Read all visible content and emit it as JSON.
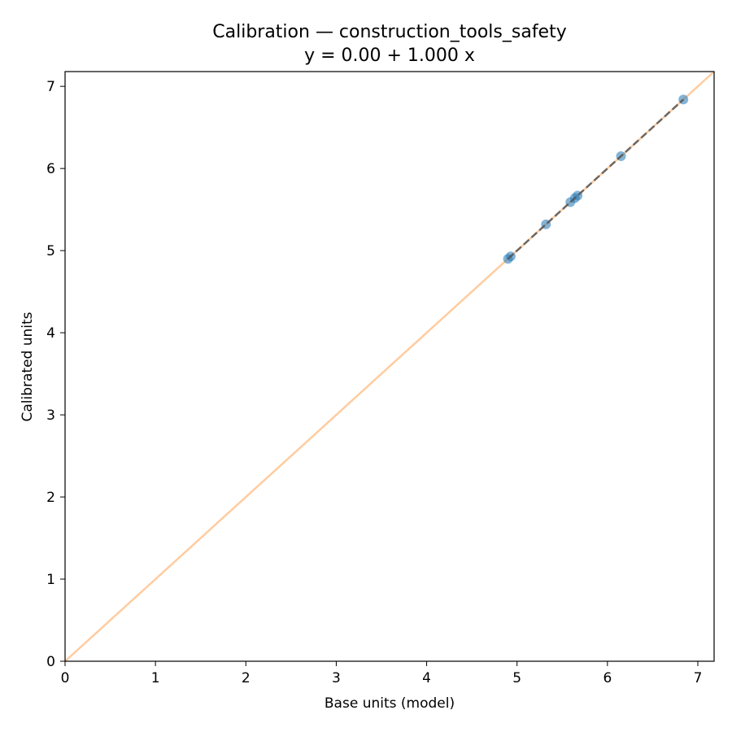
{
  "chart_data": {
    "type": "scatter",
    "title": "Calibration — construction_tools_safety",
    "subtitle": "y = 0.00 + 1.000 x",
    "xlabel": "Base units (model)",
    "ylabel": "Calibrated units",
    "xlim": [
      0,
      7.18
    ],
    "ylim": [
      0,
      7.18
    ],
    "xticks": [
      "0",
      "1",
      "2",
      "3",
      "4",
      "5",
      "6",
      "7"
    ],
    "yticks": [
      "0",
      "1",
      "2",
      "3",
      "4",
      "5",
      "6",
      "7"
    ],
    "grid": false,
    "points": {
      "x": [
        4.9,
        4.93,
        5.32,
        5.59,
        5.64,
        5.67,
        6.15,
        6.84
      ],
      "y": [
        4.9,
        4.93,
        5.32,
        5.59,
        5.64,
        5.67,
        6.15,
        6.84
      ]
    },
    "identity_line": {
      "from": [
        0,
        0
      ],
      "to": [
        7.18,
        7.18
      ]
    },
    "fit_line": {
      "intercept": 0.0,
      "slope": 1.0,
      "x_range": [
        4.9,
        6.84
      ]
    },
    "colors": {
      "points": "#1f77b4",
      "identity_line": "#ff7f0e",
      "fit_line": "#555555"
    }
  }
}
